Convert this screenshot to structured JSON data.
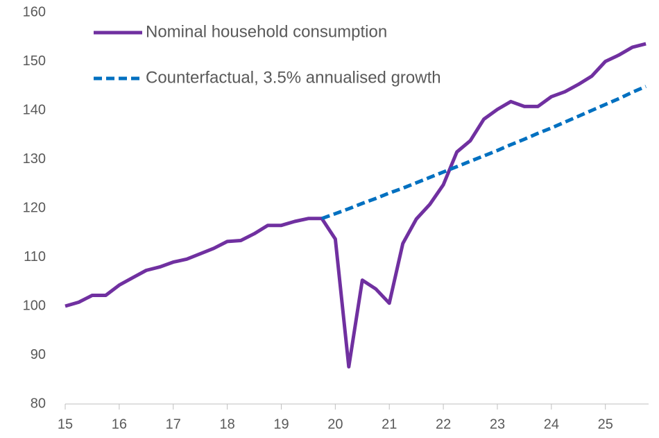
{
  "chart_data": {
    "type": "line",
    "x": [
      15,
      15.25,
      15.5,
      15.75,
      16,
      16.25,
      16.5,
      16.75,
      17,
      17.25,
      17.5,
      17.75,
      18,
      18.25,
      18.5,
      18.75,
      19,
      19.25,
      19.5,
      19.75,
      20,
      20.25,
      20.5,
      20.75,
      21,
      21.25,
      21.5,
      21.75,
      22,
      22.25,
      22.5,
      22.75,
      23,
      23.25,
      23.5,
      23.75,
      24,
      24.25,
      24.5,
      24.75,
      25,
      25.25,
      25.5,
      25.75
    ],
    "series": [
      {
        "name": "Nominal household consumption",
        "color": "#7030a0",
        "dash": false,
        "values": [
          100,
          100.8,
          102.2,
          102.2,
          104.3,
          105.8,
          107.3,
          108,
          109,
          109.6,
          110.7,
          111.8,
          113.2,
          113.4,
          114.8,
          116.5,
          116.5,
          117.3,
          117.9,
          117.9,
          113.7,
          87.6,
          105.3,
          103.5,
          100.6,
          112.8,
          117.8,
          120.8,
          124.8,
          131.5,
          133.8,
          138.2,
          140.2,
          141.8,
          140.8,
          140.8,
          142.8,
          143.8,
          145.3,
          147,
          150,
          151.3,
          152.9,
          153.6
        ]
      },
      {
        "name": "Counterfactual, 3.5% annualised growth",
        "color": "#0070c0",
        "dash": true,
        "values": [
          null,
          null,
          null,
          null,
          null,
          null,
          null,
          null,
          null,
          null,
          null,
          null,
          null,
          null,
          null,
          null,
          null,
          null,
          null,
          117.9,
          118.9,
          119.9,
          121.0,
          122.0,
          123.1,
          124.1,
          125.2,
          126.3,
          127.4,
          128.5,
          129.6,
          130.7,
          131.8,
          133.0,
          134.1,
          135.3,
          136.4,
          137.6,
          138.8,
          140.0,
          141.2,
          142.4,
          143.7,
          144.9
        ]
      }
    ],
    "xlim": [
      15,
      25.8
    ],
    "xticks": [
      15,
      16,
      17,
      18,
      19,
      20,
      21,
      22,
      23,
      24,
      25
    ],
    "ylim": [
      80,
      160
    ],
    "yticks": [
      80,
      90,
      100,
      110,
      120,
      130,
      140,
      150,
      160
    ],
    "grid": false,
    "legend": "top-left"
  }
}
